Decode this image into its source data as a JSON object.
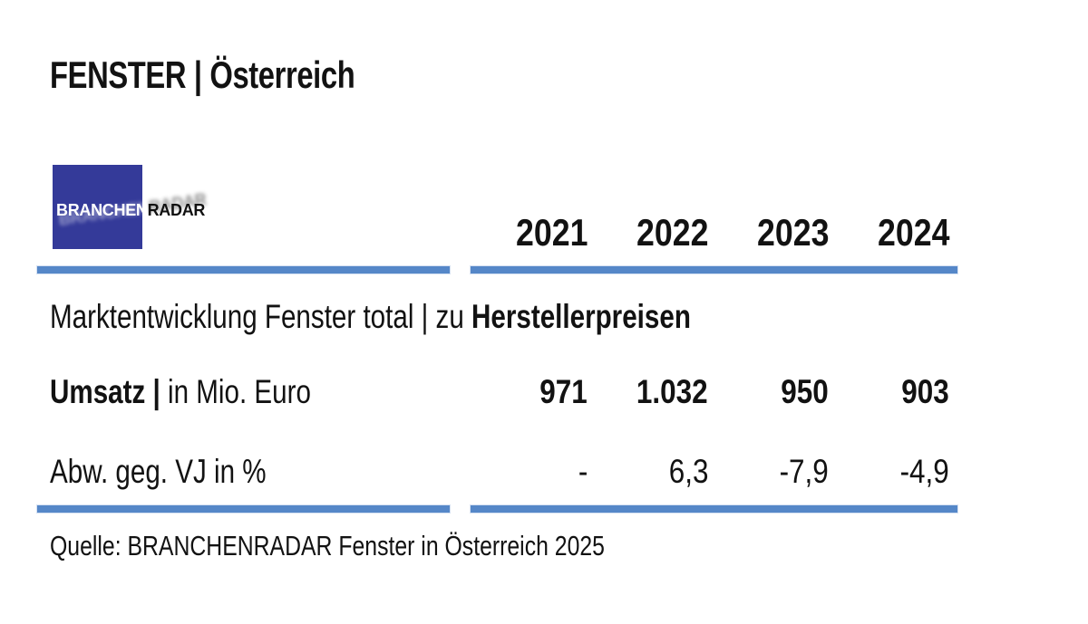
{
  "title": "FENSTER | Österreich",
  "logo": {
    "part1": "BRANCHEN",
    "part2": "RADAR"
  },
  "table": {
    "years": [
      "2021",
      "2022",
      "2023",
      "2024"
    ],
    "section_title": {
      "regular": "Marktentwicklung Fenster total | zu ",
      "bold": "Herstellerpreisen"
    },
    "rows": [
      {
        "label_bold": "Umsatz |",
        "label_regular": " in Mio. Euro",
        "values": [
          "971",
          "1.032",
          "950",
          "903"
        ]
      },
      {
        "label_bold": "",
        "label_regular": "Abw. geg. VJ in %",
        "values": [
          "-",
          "6,3",
          "-7,9",
          "-4,9"
        ]
      }
    ]
  },
  "source": "Quelle: BRANCHENRADAR Fenster in Österreich 2025",
  "colors": {
    "bar_blue": "#5587C8",
    "logo_blue": "#343A99",
    "text": "#121212"
  },
  "chart_data": {
    "type": "table",
    "title": "Marktentwicklung Fenster total | zu Herstellerpreisen",
    "columns": [
      "2021",
      "2022",
      "2023",
      "2024"
    ],
    "rows": [
      {
        "label": "Umsatz | in Mio. Euro",
        "values": [
          971,
          1032,
          950,
          903
        ]
      },
      {
        "label": "Abw. geg. VJ in %",
        "values": [
          null,
          6.3,
          -7.9,
          -4.9
        ]
      }
    ]
  }
}
